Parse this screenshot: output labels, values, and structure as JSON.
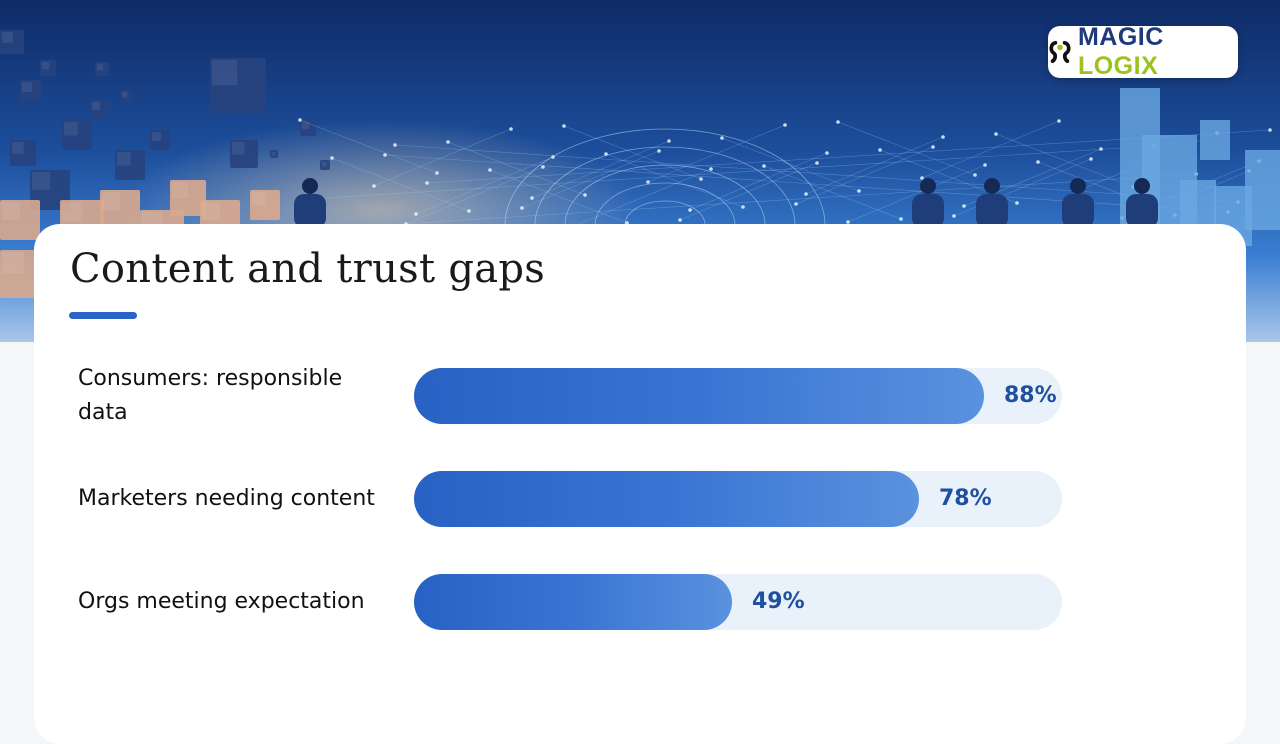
{
  "brand": {
    "name_part1": "MAGIC",
    "name_part2": "LOGIX"
  },
  "title": "Content and trust gaps",
  "colors": {
    "bar": "#2f6ccb",
    "track": "#e9f1fb",
    "value_text": "#1f4f9f",
    "underline": "#2b63c6"
  },
  "chart_data": {
    "type": "bar",
    "orientation": "horizontal",
    "title": "Content and trust gaps",
    "categories": [
      "Consumers: responsible data",
      "Marketers needing content",
      "Orgs meeting expectation"
    ],
    "values": [
      88,
      78,
      49
    ],
    "value_labels": [
      "88%",
      "78%",
      "49%"
    ],
    "xlim": [
      0,
      100
    ],
    "grid": false
  }
}
